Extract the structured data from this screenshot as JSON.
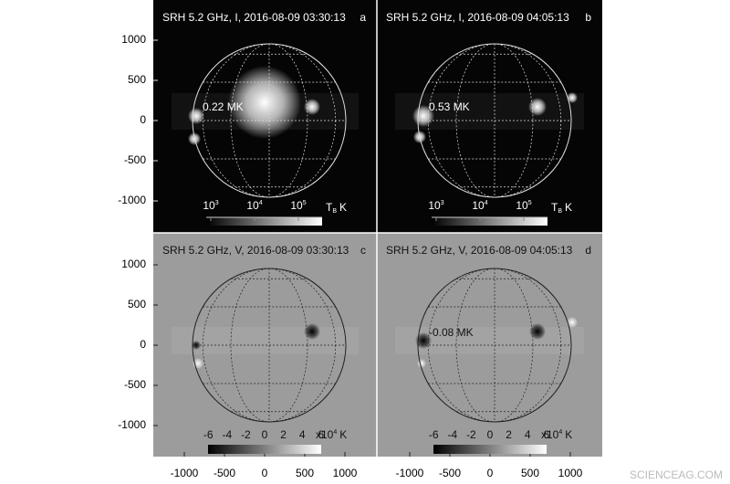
{
  "panels": [
    {
      "title": "SRH 5.2 GHz, I, 2016-08-09 03:30:13",
      "letter": "a",
      "annotation": "0.22 MK"
    },
    {
      "title": "SRH 5.2 GHz, I, 2016-08-09 04:05:13",
      "letter": "b",
      "annotation": "0.53 MK"
    },
    {
      "title": "SRH 5.2 GHz, V, 2016-08-09 03:30:13",
      "letter": "c"
    },
    {
      "title": "SRH 5.2 GHz, V, 2016-08-09 04:05:13",
      "letter": "d",
      "annotation": "-0.08 MK"
    }
  ],
  "axis_ticks": [
    -1000,
    -500,
    0,
    500,
    1000
  ],
  "intensity_colorbar": {
    "base": "10",
    "exponents": [
      3,
      4,
      5
    ],
    "symbol": "T",
    "subscript": "B",
    "unit": "K"
  },
  "polarization_colorbar": {
    "ticks": [
      -6,
      -4,
      -2,
      0,
      2,
      4,
      6
    ],
    "multiplier": "x10",
    "exponent": "4",
    "unit": "K"
  },
  "watermark": "SCIENCEAG.COM"
}
